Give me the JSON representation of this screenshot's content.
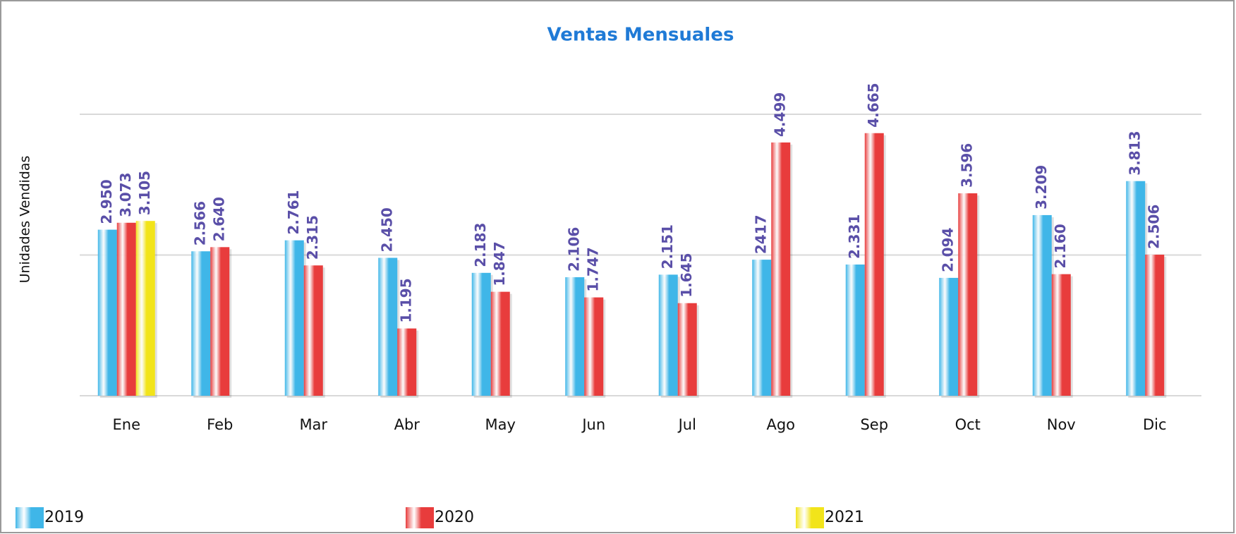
{
  "chart_data": {
    "type": "bar",
    "title": "Ventas Mensuales",
    "y_label": "Unidades Vendidas",
    "categories": [
      "Ene",
      "Feb",
      "Mar",
      "Abr",
      "May",
      "Jun",
      "Jul",
      "Ago",
      "Sep",
      "Oct",
      "Nov",
      "Dic"
    ],
    "series": [
      {
        "name": "2019",
        "color": "#3fb6e8",
        "values": [
          2950,
          2566,
          2761,
          2450,
          2183,
          2106,
          2151,
          2417,
          2331,
          2094,
          3209,
          3813
        ],
        "value_labels": [
          "2.950",
          "2.566",
          "2.761",
          "2.450",
          "2.183",
          "2.106",
          "2.151",
          "2417",
          "2.331",
          "2.094",
          "3.209",
          "3.813"
        ]
      },
      {
        "name": "2020",
        "color": "#e83c3c",
        "values": [
          3073,
          2640,
          2315,
          1195,
          1847,
          1747,
          1645,
          4499,
          4665,
          3596,
          2160,
          2506
        ],
        "value_labels": [
          "3.073",
          "2.640",
          "2.315",
          "1.195",
          "1.847",
          "1.747",
          "1.645",
          "4.499",
          "4.665",
          "3.596",
          "2.160",
          "2.506"
        ]
      },
      {
        "name": "2021",
        "color": "#f2e41a",
        "values": [
          3105,
          null,
          null,
          null,
          null,
          null,
          null,
          null,
          null,
          null,
          null,
          null
        ],
        "value_labels": [
          "3.105",
          null,
          null,
          null,
          null,
          null,
          null,
          null,
          null,
          null,
          null,
          null
        ]
      }
    ],
    "ylim": [
      0,
      5000
    ],
    "yticks": [
      0,
      2500,
      5000
    ],
    "grid": true,
    "legend": "bottom"
  }
}
